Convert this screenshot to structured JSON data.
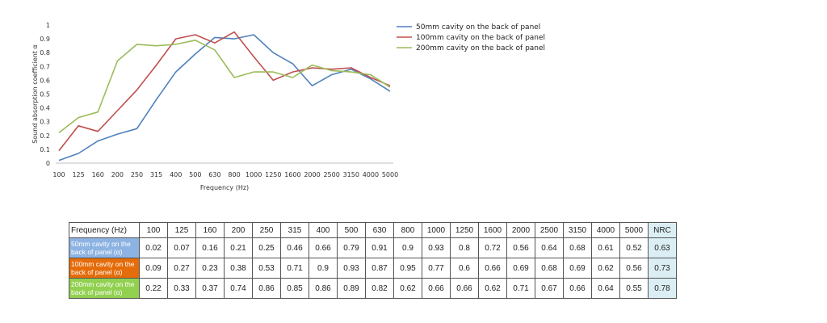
{
  "colors": {
    "series": [
      "#4f81bd",
      "#c0504d",
      "#9bbb59"
    ],
    "row_headers": [
      "#8db3e2",
      "#e46c0a",
      "#92d050"
    ],
    "nrc_bg": "#dbeef4"
  },
  "chart_data": {
    "type": "line",
    "title": "",
    "xlabel": "Frequency (Hz)",
    "ylabel": "Sound absorption coefficient α",
    "categories": [
      "100",
      "125",
      "160",
      "200",
      "250",
      "315",
      "400",
      "500",
      "630",
      "800",
      "1000",
      "1250",
      "1600",
      "2000",
      "2500",
      "3150",
      "4000",
      "5000"
    ],
    "ylim": [
      0,
      1
    ],
    "yticks": [
      "0",
      "0.1",
      "0.2",
      "0.3",
      "0.4",
      "0.5",
      "0.6",
      "0.7",
      "0.8",
      "0.9",
      "1"
    ],
    "grid": false,
    "legend_position": "top-right",
    "series": [
      {
        "name": "50mm cavity on the back of panel",
        "values": [
          0.02,
          0.07,
          0.16,
          0.21,
          0.25,
          0.46,
          0.66,
          0.79,
          0.91,
          0.9,
          0.93,
          0.8,
          0.72,
          0.56,
          0.64,
          0.68,
          0.61,
          0.52
        ]
      },
      {
        "name": "100mm cavity on the back of panel",
        "values": [
          0.09,
          0.27,
          0.23,
          0.38,
          0.53,
          0.71,
          0.9,
          0.93,
          0.87,
          0.95,
          0.77,
          0.6,
          0.66,
          0.69,
          0.68,
          0.69,
          0.62,
          0.56
        ]
      },
      {
        "name": "200mm cavity on the back of panel",
        "values": [
          0.22,
          0.33,
          0.37,
          0.74,
          0.86,
          0.85,
          0.86,
          0.89,
          0.82,
          0.62,
          0.66,
          0.66,
          0.62,
          0.71,
          0.67,
          0.66,
          0.64,
          0.55
        ]
      }
    ]
  },
  "table": {
    "header": [
      "Frequency (Hz)",
      "100",
      "125",
      "160",
      "200",
      "250",
      "315",
      "400",
      "500",
      "630",
      "800",
      "1000",
      "1250",
      "1600",
      "2000",
      "2500",
      "3150",
      "4000",
      "5000",
      "NRC"
    ],
    "rows": [
      {
        "label": "50mm cavity on the back of panel (α)",
        "values": [
          "0.02",
          "0.07",
          "0.16",
          "0.21",
          "0.25",
          "0.46",
          "0.66",
          "0.79",
          "0.91",
          "0.9",
          "0.93",
          "0.8",
          "0.72",
          "0.56",
          "0.64",
          "0.68",
          "0.61",
          "0.52"
        ],
        "nrc": "0.63"
      },
      {
        "label": "100mm cavity on the back of panel (α)",
        "values": [
          "0.09",
          "0.27",
          "0.23",
          "0.38",
          "0.53",
          "0.71",
          "0.9",
          "0.93",
          "0.87",
          "0.95",
          "0.77",
          "0.6",
          "0.66",
          "0.69",
          "0.68",
          "0.69",
          "0.62",
          "0.56"
        ],
        "nrc": "0.73"
      },
      {
        "label": "200mm cavity on the back of panel (α)",
        "values": [
          "0.22",
          "0.33",
          "0.37",
          "0.74",
          "0.86",
          "0.85",
          "0.86",
          "0.89",
          "0.82",
          "0.62",
          "0.66",
          "0.66",
          "0.62",
          "0.71",
          "0.67",
          "0.66",
          "0.64",
          "0.55"
        ],
        "nrc": "0.78"
      }
    ]
  }
}
